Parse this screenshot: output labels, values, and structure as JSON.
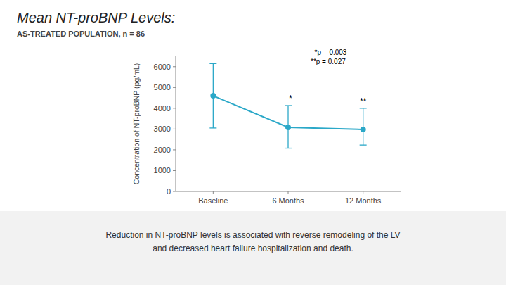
{
  "chart_data": {
    "type": "line",
    "title": "Mean NT-proBNP Levels:",
    "subtitle": "AS-TREATED POPULATION, n = 86",
    "categories": [
      "Baseline",
      "6 Months",
      "12 Months"
    ],
    "values": [
      4600,
      3080,
      2980
    ],
    "error_upper": [
      1550,
      1050,
      1020
    ],
    "error_lower": [
      1550,
      1000,
      750
    ],
    "color": "#2ba8c8",
    "marker": "circle",
    "ylabel": "Concentration of NT-proBNP (pg/mL)",
    "ylim": [
      0,
      6500
    ],
    "yticks": [
      0,
      1000,
      2000,
      3000,
      4000,
      5000,
      6000
    ],
    "grid": false,
    "point_labels": [
      null,
      "  *",
      "**"
    ],
    "annotation": [
      "  *p = 0.003",
      "**p = 0.027"
    ],
    "footer": [
      "Reduction in NT-proBNP levels is associated with reverse remodeling of the LV",
      "and decreased heart failure hospitalization and death."
    ]
  }
}
